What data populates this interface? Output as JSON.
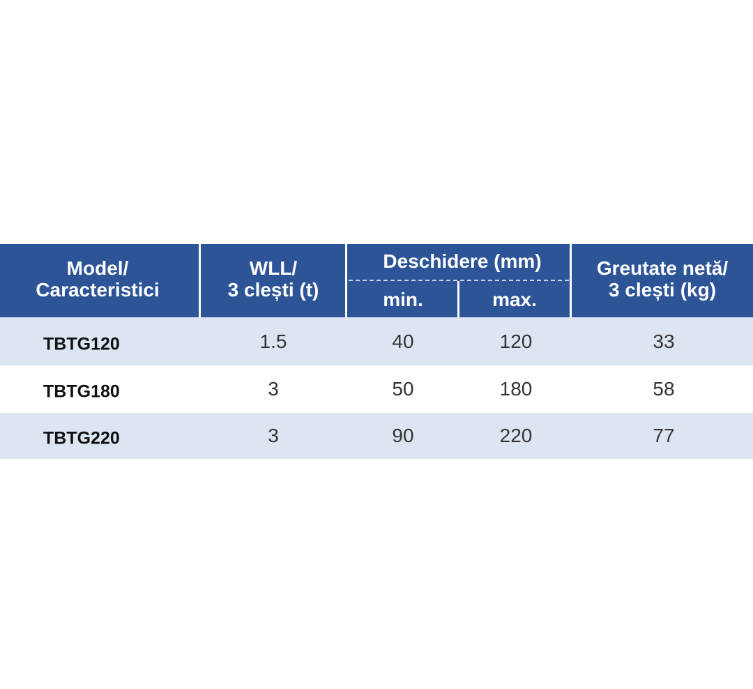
{
  "header": {
    "model": [
      "Model/",
      "Caracteristici"
    ],
    "wll": [
      "WLL/",
      "3 clești (t)"
    ],
    "opening": "Deschidere (mm)",
    "min": "min.",
    "max": "max.",
    "weight": [
      "Greutate netă/",
      "3 clești (kg)"
    ]
  },
  "table": {
    "rows": [
      [
        "TBTG120",
        1.5,
        40,
        120,
        33
      ],
      [
        "TBTG180",
        3,
        50,
        180,
        58
      ],
      [
        "TBTG220",
        3,
        90,
        220,
        77
      ]
    ]
  }
}
